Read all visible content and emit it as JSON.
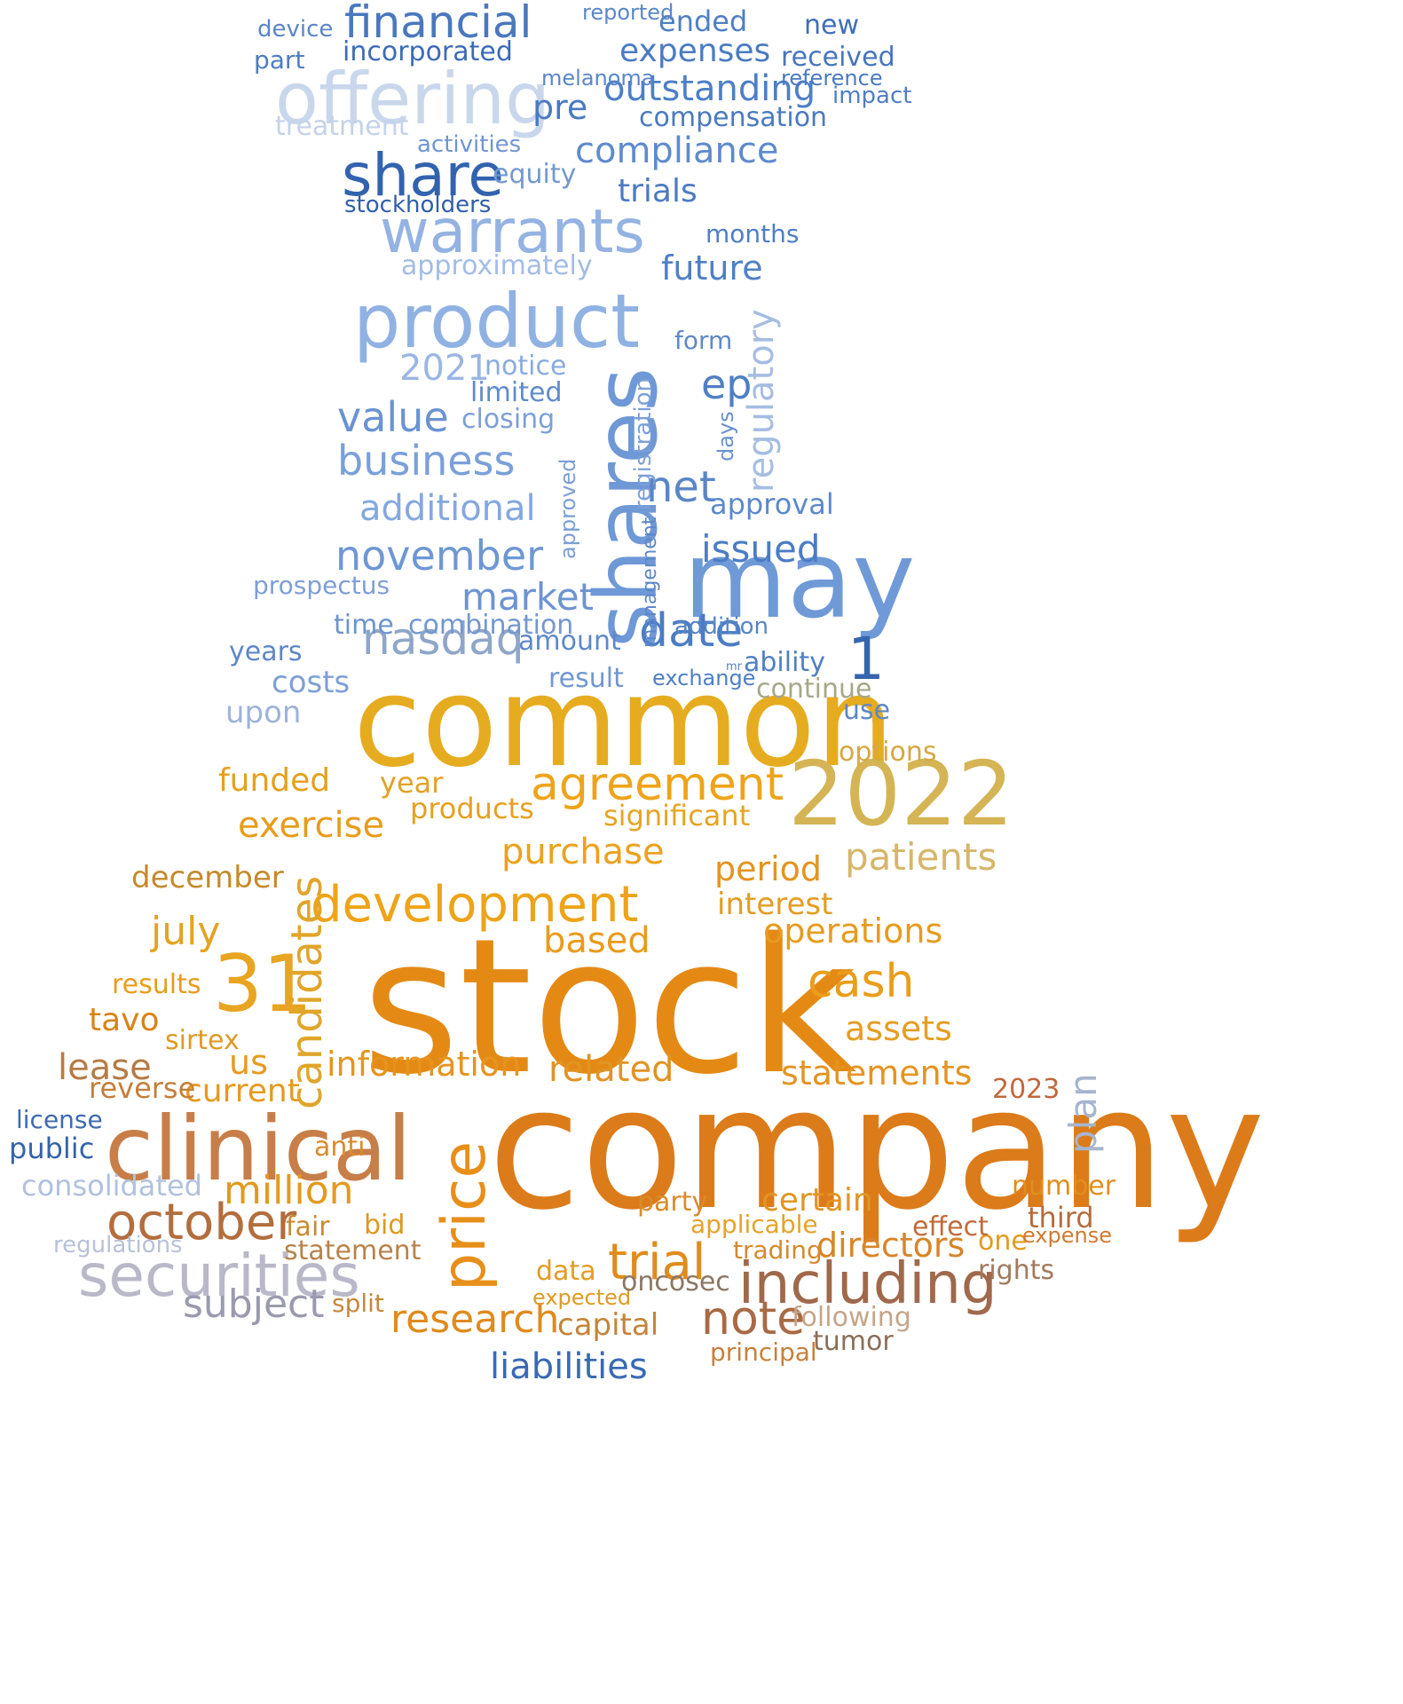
{
  "words": [
    {
      "text": "stock",
      "color": "#e48a14"
    },
    {
      "text": "company",
      "color": "#dc7b1a"
    },
    {
      "text": "common",
      "color": "#e6ac20"
    },
    {
      "text": "2022",
      "color": "#d4b454"
    },
    {
      "text": "clinical",
      "color": "#c87e48"
    },
    {
      "text": "shares",
      "color": "#6e98d6"
    },
    {
      "text": "may",
      "color": "#6f9ad7"
    },
    {
      "text": "product",
      "color": "#8fb2e2"
    },
    {
      "text": "offering",
      "color": "#c9d7ec"
    },
    {
      "text": "warrants",
      "color": "#94b3e2"
    },
    {
      "text": "share",
      "color": "#3263ae"
    },
    {
      "text": "financial",
      "color": "#4a78bd"
    },
    {
      "text": "securities",
      "color": "#b8b8c8"
    },
    {
      "text": "31",
      "color": "#e8a521"
    },
    {
      "text": "price",
      "color": "#e88f1a"
    },
    {
      "text": "including",
      "color": "#a0694b"
    },
    {
      "text": "october",
      "color": "#b36e3d"
    },
    {
      "text": "development",
      "color": "#eda419"
    },
    {
      "text": "agreement",
      "color": "#eea41a"
    },
    {
      "text": "trial",
      "color": "#e08c1d"
    },
    {
      "text": "research",
      "color": "#e08a1c"
    },
    {
      "text": "note",
      "color": "#a96a44"
    },
    {
      "text": "million",
      "color": "#e39a1f"
    },
    {
      "text": "subject",
      "color": "#9a9aae"
    },
    {
      "text": "candidates",
      "color": "#e0a52a"
    },
    {
      "text": "nasdaq",
      "color": "#8fa6c8"
    },
    {
      "text": "date",
      "color": "#4c7dc4"
    },
    {
      "text": "net",
      "color": "#5a86c8"
    },
    {
      "text": "compliance",
      "color": "#5f8bcc"
    },
    {
      "text": "outstanding",
      "color": "#4d7fc6"
    },
    {
      "text": "value",
      "color": "#6a93d2"
    },
    {
      "text": "business",
      "color": "#7aa0da"
    },
    {
      "text": "november",
      "color": "#6e97d4"
    },
    {
      "text": "additional",
      "color": "#84a8df"
    },
    {
      "text": "market",
      "color": "#6d94d0"
    },
    {
      "text": "issued",
      "color": "#4b7dc5"
    },
    {
      "text": "regulatory",
      "color": "#a6bde2"
    },
    {
      "text": "ep",
      "color": "#4f7fc4"
    },
    {
      "text": "1",
      "color": "#3565ae"
    },
    {
      "text": "cash",
      "color": "#e99e1a"
    },
    {
      "text": "operations",
      "color": "#e69c1f"
    },
    {
      "text": "patients",
      "color": "#d6b66a"
    },
    {
      "text": "period",
      "color": "#e39420"
    },
    {
      "text": "based",
      "color": "#e99b1d"
    },
    {
      "text": "july",
      "color": "#e5a322"
    },
    {
      "text": "purchase",
      "color": "#eba21e"
    },
    {
      "text": "statements",
      "color": "#e39422"
    },
    {
      "text": "information",
      "color": "#e6941e"
    },
    {
      "text": "related",
      "color": "#e19424"
    },
    {
      "text": "us",
      "color": "#e89a1e"
    },
    {
      "text": "assets",
      "color": "#e59e23"
    },
    {
      "text": "plan",
      "color": "#a6b5cf"
    },
    {
      "text": "tavo",
      "color": "#d98318"
    },
    {
      "text": "lease",
      "color": "#b67c46"
    },
    {
      "text": "liabilities",
      "color": "#3b6ab4"
    },
    {
      "text": "capital",
      "color": "#c4843a"
    },
    {
      "text": "directors",
      "color": "#d7852a"
    },
    {
      "text": "certain",
      "color": "#e19524"
    },
    {
      "text": "public",
      "color": "#3563aa"
    },
    {
      "text": "consolidated",
      "color": "#b1c1de"
    },
    {
      "text": "regulations",
      "color": "#b7c2d8"
    },
    {
      "text": "license",
      "color": "#3e6aae"
    },
    {
      "text": "funded",
      "color": "#e5a01f"
    },
    {
      "text": "exercise",
      "color": "#e79d1a"
    },
    {
      "text": "december",
      "color": "#c48a2c"
    },
    {
      "text": "significant",
      "color": "#e7a422"
    },
    {
      "text": "products",
      "color": "#e7a020"
    },
    {
      "text": "year",
      "color": "#e2a224"
    },
    {
      "text": "interest",
      "color": "#e49c22"
    },
    {
      "text": "current",
      "color": "#e59a20"
    },
    {
      "text": "reverse",
      "color": "#c47f3a"
    },
    {
      "text": "results",
      "color": "#e99c1c"
    },
    {
      "text": "sirtex",
      "color": "#de9a26"
    },
    {
      "text": "fair",
      "color": "#c78b34"
    },
    {
      "text": "bid",
      "color": "#df981f"
    },
    {
      "text": "statement",
      "color": "#b8834a"
    },
    {
      "text": "anti",
      "color": "#d98c2c"
    },
    {
      "text": "party",
      "color": "#d98b2b"
    },
    {
      "text": "third",
      "color": "#b46c3c"
    },
    {
      "text": "expected",
      "color": "#de9a24"
    },
    {
      "text": "data",
      "color": "#e39c22"
    },
    {
      "text": "split",
      "color": "#c9863a"
    },
    {
      "text": "oncosec",
      "color": "#8b7764"
    },
    {
      "text": "rights",
      "color": "#a27a5c"
    },
    {
      "text": "number",
      "color": "#e08e1d"
    },
    {
      "text": "one",
      "color": "#e49a1d"
    },
    {
      "text": "effect",
      "color": "#c06c3a"
    },
    {
      "text": "2023",
      "color": "#c1683c"
    },
    {
      "text": "expense",
      "color": "#d27a2f"
    },
    {
      "text": "principal",
      "color": "#c6803a"
    },
    {
      "text": "following",
      "color": "#c4a58a"
    },
    {
      "text": "tumor",
      "color": "#8a6e58"
    },
    {
      "text": "trading",
      "color": "#d5892c"
    },
    {
      "text": "applicable",
      "color": "#e5a22a"
    },
    {
      "text": "mr",
      "color": "#5a80bd"
    },
    {
      "text": "approval",
      "color": "#5d89ca"
    },
    {
      "text": "ability",
      "color": "#4f80c4"
    },
    {
      "text": "prospectus",
      "color": "#7d9fd6"
    },
    {
      "text": "combination",
      "color": "#7298d0"
    },
    {
      "text": "time",
      "color": "#6d94cf"
    },
    {
      "text": "costs",
      "color": "#7ea0d6"
    },
    {
      "text": "continue",
      "color": "#a6a888"
    },
    {
      "text": "upon",
      "color": "#9fb3d8"
    },
    {
      "text": "use",
      "color": "#5c87c7"
    },
    {
      "text": "options",
      "color": "#d7a742"
    },
    {
      "text": "amount",
      "color": "#5e89c8"
    },
    {
      "text": "result",
      "color": "#7197d0"
    },
    {
      "text": "years",
      "color": "#5e87c7"
    },
    {
      "text": "exchange",
      "color": "#4f7fc4"
    },
    {
      "text": "addition",
      "color": "#5784c6"
    },
    {
      "text": "management",
      "color": "#5b87c8"
    },
    {
      "text": "registration",
      "color": "#7b9fd8"
    },
    {
      "text": "days",
      "color": "#6890cf"
    },
    {
      "text": "approved",
      "color": "#7a9ed6"
    },
    {
      "text": "form",
      "color": "#5e89c8"
    },
    {
      "text": "notice",
      "color": "#8aabe0"
    },
    {
      "text": "limited",
      "color": "#5f8bcb"
    },
    {
      "text": "closing",
      "color": "#7c9fd7"
    },
    {
      "text": "2021",
      "color": "#9ab6e3"
    },
    {
      "text": "approximately",
      "color": "#a3bce6"
    },
    {
      "text": "future",
      "color": "#4f80c4"
    },
    {
      "text": "months",
      "color": "#4e7ec3"
    },
    {
      "text": "trials",
      "color": "#4b7bc2"
    },
    {
      "text": "equity",
      "color": "#7399d1"
    },
    {
      "text": "stockholders",
      "color": "#315ea8"
    },
    {
      "text": "activities",
      "color": "#6f96d0"
    },
    {
      "text": "pre",
      "color": "#4a79c0"
    },
    {
      "text": "compensation",
      "color": "#4a7ac1"
    },
    {
      "text": "expenses",
      "color": "#4b7bc2"
    },
    {
      "text": "ended",
      "color": "#4f7fc4"
    },
    {
      "text": "incorporated",
      "color": "#3c6bb6"
    },
    {
      "text": "treatment",
      "color": "#c4d2ea"
    },
    {
      "text": "melanoma",
      "color": "#5b87c8"
    },
    {
      "text": "received",
      "color": "#4775bd"
    },
    {
      "text": "reference",
      "color": "#4b7ac1"
    },
    {
      "text": "new",
      "color": "#3f6eb8"
    },
    {
      "text": "device",
      "color": "#5a86c7"
    },
    {
      "text": "part",
      "color": "#4d7cc2"
    },
    {
      "text": "reported",
      "color": "#5b87c8"
    },
    {
      "text": "impact",
      "color": "#4f7ec3"
    }
  ]
}
